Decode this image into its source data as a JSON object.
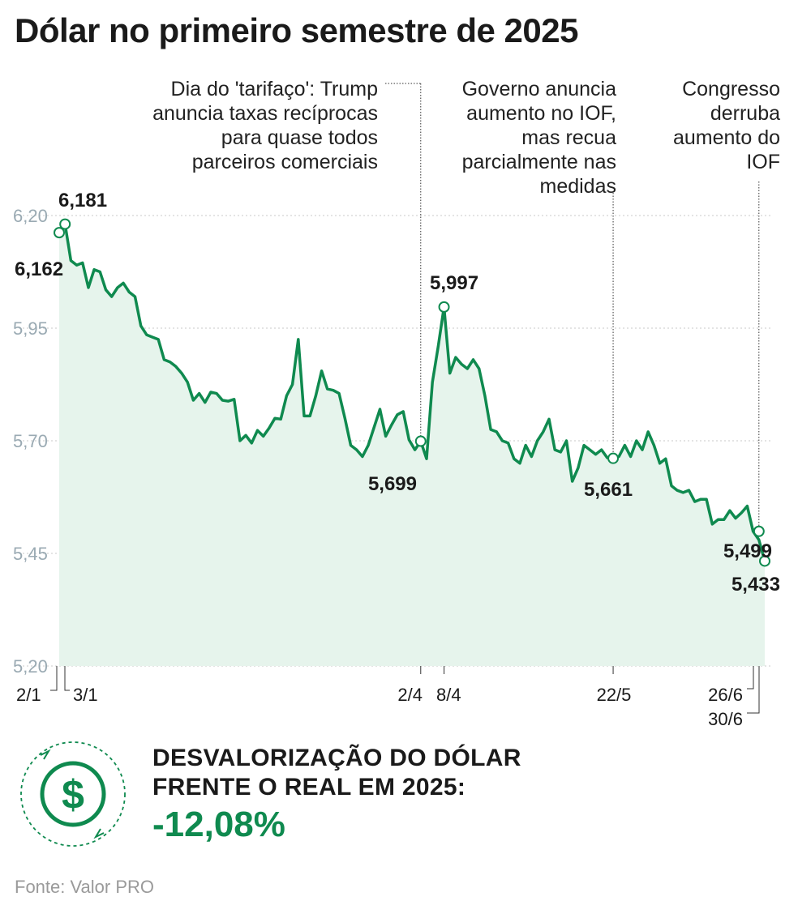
{
  "title": "Dólar no primeiro semestre de 2025",
  "colors": {
    "line": "#0f8a4f",
    "area": "#e6f4ec",
    "grid": "#c9c9c9",
    "accent": "#0f8a4f"
  },
  "chart_data": {
    "type": "area",
    "title": "Dólar no primeiro semestre de 2025",
    "xlabel": "",
    "ylabel": "",
    "ylim": [
      5.2,
      6.3
    ],
    "yticks": [
      5.2,
      5.45,
      5.7,
      5.95,
      6.2
    ],
    "ytick_labels": [
      "5,20",
      "5,45",
      "5,70",
      "5,95",
      "6,20"
    ],
    "grid": true,
    "values": [
      6.162,
      6.181,
      6.1,
      6.09,
      6.095,
      6.04,
      6.08,
      6.075,
      6.035,
      6.02,
      6.04,
      6.05,
      6.03,
      6.02,
      5.955,
      5.935,
      5.93,
      5.925,
      5.88,
      5.875,
      5.865,
      5.85,
      5.83,
      5.79,
      5.805,
      5.785,
      5.808,
      5.805,
      5.79,
      5.788,
      5.792,
      5.7,
      5.712,
      5.695,
      5.723,
      5.71,
      5.728,
      5.75,
      5.748,
      5.8,
      5.825,
      5.925,
      5.755,
      5.755,
      5.8,
      5.855,
      5.815,
      5.812,
      5.805,
      5.75,
      5.69,
      5.68,
      5.665,
      5.69,
      5.73,
      5.77,
      5.71,
      5.735,
      5.758,
      5.765,
      5.702,
      5.68,
      5.699,
      5.66,
      5.83,
      5.91,
      5.997,
      5.85,
      5.885,
      5.87,
      5.86,
      5.88,
      5.86,
      5.8,
      5.725,
      5.72,
      5.7,
      5.695,
      5.66,
      5.65,
      5.69,
      5.665,
      5.7,
      5.72,
      5.748,
      5.68,
      5.675,
      5.7,
      5.61,
      5.64,
      5.69,
      5.68,
      5.67,
      5.68,
      5.662,
      5.661,
      5.665,
      5.69,
      5.665,
      5.7,
      5.68,
      5.72,
      5.69,
      5.65,
      5.66,
      5.6,
      5.59,
      5.585,
      5.59,
      5.565,
      5.57,
      5.57,
      5.515,
      5.525,
      5.525,
      5.545,
      5.528,
      5.54,
      5.555,
      5.499,
      5.48,
      5.433
    ],
    "highlights": [
      {
        "index": 0,
        "date": "2/1",
        "value": 6.162,
        "label": "6,162"
      },
      {
        "index": 1,
        "date": "3/1",
        "value": 6.181,
        "label": "6,181"
      },
      {
        "index": 62,
        "date": "2/4",
        "value": 5.699,
        "label": "5,699"
      },
      {
        "index": 66,
        "date": "8/4",
        "value": 5.997,
        "label": "5,997"
      },
      {
        "index": 95,
        "date": "22/5",
        "value": 5.661,
        "label": "5,661"
      },
      {
        "index": 120,
        "date": "26/6",
        "value": 5.499,
        "label": "5,499"
      },
      {
        "index": 121,
        "date": "30/6",
        "value": 5.433,
        "label": "5,433"
      }
    ],
    "annotations": [
      {
        "index": 62,
        "lines": [
          "Dia do 'tarifaço': Trump",
          "anuncia taxas recíprocas",
          "para quase todos",
          "parceiros comerciais"
        ]
      },
      {
        "index": 95,
        "lines": [
          "Governo anuncia",
          "aumento no IOF,",
          "mas recua",
          "parcialmente nas",
          "medidas"
        ]
      },
      {
        "index": 120,
        "lines": [
          "Congresso",
          "derruba",
          "aumento do",
          "IOF"
        ]
      }
    ]
  },
  "summary": {
    "label_line1": "DESVALORIZAÇÃO DO DÓLAR",
    "label_line2": "FRENTE O REAL EM 2025:",
    "value": "-12,08%",
    "icon": "dollar-cycle-icon",
    "icon_glyph": "$"
  },
  "source": "Fonte: Valor PRO"
}
